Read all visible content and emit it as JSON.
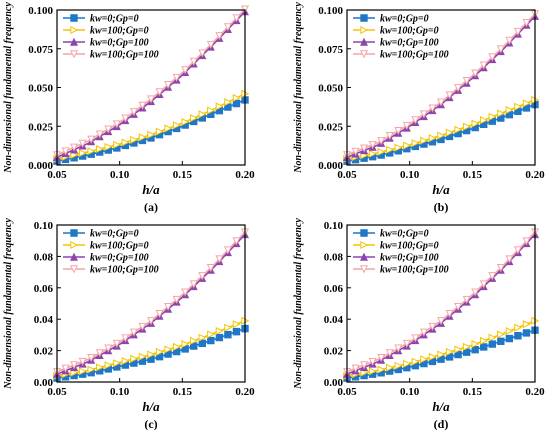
{
  "chart_data": [
    {
      "type": "line",
      "panel_label": "(a)",
      "xlabel": "h/a",
      "ylabel": "Non-dimensional fundamental frequency",
      "xlim": [
        0.05,
        0.2
      ],
      "ylim": [
        0,
        0.1
      ],
      "xticks": [
        "0.05",
        "0.10",
        "0.15",
        "0.20"
      ],
      "yticks": [
        "0.000",
        "0.025",
        "0.050",
        "0.075",
        "0.100"
      ],
      "legend_position": "top-left",
      "x": [
        0.05,
        0.075,
        0.1,
        0.125,
        0.15,
        0.175,
        0.2
      ],
      "series": [
        {
          "name": "kw=0;Gp=0",
          "color": "#1f77c8",
          "marker": "square",
          "values": [
            0.0025,
            0.0065,
            0.0115,
            0.0175,
            0.025,
            0.0335,
            0.042
          ]
        },
        {
          "name": "kw=100;Gp=0",
          "color": "#f5c400",
          "marker": "triangle-right",
          "values": [
            0.004,
            0.0085,
            0.0135,
            0.0195,
            0.027,
            0.036,
            0.046
          ]
        },
        {
          "name": "kw=0;Gp=100",
          "color": "#8e44ad",
          "marker": "triangle-up",
          "values": [
            0.005,
            0.014,
            0.026,
            0.041,
            0.058,
            0.078,
            0.099
          ]
        },
        {
          "name": "kw=100;Gp=100",
          "color": "#f4a6a6",
          "marker": "triangle-down",
          "values": [
            0.0065,
            0.0155,
            0.0275,
            0.0425,
            0.0595,
            0.0795,
            0.1005
          ]
        }
      ]
    },
    {
      "type": "line",
      "panel_label": "(b)",
      "xlabel": "h/a",
      "ylabel": "Non-dimensional fundamental frequency",
      "xlim": [
        0.05,
        0.2
      ],
      "ylim": [
        0,
        0.1
      ],
      "xticks": [
        "0.05",
        "0.10",
        "0.15",
        "0.20"
      ],
      "yticks": [
        "0.000",
        "0.025",
        "0.050",
        "0.075",
        "0.100"
      ],
      "legend_position": "top-left",
      "x": [
        0.05,
        0.075,
        0.1,
        0.125,
        0.15,
        0.175,
        0.2
      ],
      "series": [
        {
          "name": "kw=0;Gp=0",
          "color": "#1f77c8",
          "marker": "square",
          "values": [
            0.0025,
            0.006,
            0.011,
            0.0165,
            0.0235,
            0.031,
            0.039
          ]
        },
        {
          "name": "kw=100;Gp=0",
          "color": "#f5c400",
          "marker": "triangle-right",
          "values": [
            0.004,
            0.008,
            0.013,
            0.019,
            0.026,
            0.034,
            0.042
          ]
        },
        {
          "name": "kw=0;Gp=100",
          "color": "#8e44ad",
          "marker": "triangle-up",
          "values": [
            0.005,
            0.013,
            0.025,
            0.039,
            0.056,
            0.075,
            0.096
          ]
        },
        {
          "name": "kw=100;Gp=100",
          "color": "#f4a6a6",
          "marker": "triangle-down",
          "values": [
            0.0065,
            0.0145,
            0.0265,
            0.0405,
            0.0575,
            0.0765,
            0.0975
          ]
        }
      ]
    },
    {
      "type": "line",
      "panel_label": "(c)",
      "xlabel": "h/a",
      "ylabel": "Non-dimensional fundamental frequency",
      "xlim": [
        0.05,
        0.2
      ],
      "ylim": [
        0,
        0.1
      ],
      "xticks": [
        "0.05",
        "0.10",
        "0.15",
        "0.20"
      ],
      "yticks": [
        "0.00",
        "0.02",
        "0.04",
        "0.06",
        "0.08",
        "0.10"
      ],
      "legend_position": "top-left",
      "x": [
        0.05,
        0.075,
        0.1,
        0.125,
        0.15,
        0.175,
        0.2
      ],
      "series": [
        {
          "name": "kw=0;Gp=0",
          "color": "#1f77c8",
          "marker": "square",
          "values": [
            0.0025,
            0.0055,
            0.01,
            0.0145,
            0.0205,
            0.027,
            0.034
          ]
        },
        {
          "name": "kw=100;Gp=0",
          "color": "#f5c400",
          "marker": "triangle-right",
          "values": [
            0.004,
            0.0075,
            0.0125,
            0.0175,
            0.0235,
            0.031,
            0.039
          ]
        },
        {
          "name": "kw=0;Gp=100",
          "color": "#8e44ad",
          "marker": "triangle-up",
          "values": [
            0.005,
            0.013,
            0.024,
            0.0375,
            0.054,
            0.073,
            0.094
          ]
        },
        {
          "name": "kw=100;Gp=100",
          "color": "#f4a6a6",
          "marker": "triangle-down",
          "values": [
            0.0065,
            0.0145,
            0.0255,
            0.039,
            0.0555,
            0.0745,
            0.0955
          ]
        }
      ]
    },
    {
      "type": "line",
      "panel_label": "(d)",
      "xlabel": "h/a",
      "ylabel": "Non-dimensional fundamental frequency",
      "xlim": [
        0.05,
        0.2
      ],
      "ylim": [
        0,
        0.1
      ],
      "xticks": [
        "0.05",
        "0.10",
        "0.15",
        "0.20"
      ],
      "yticks": [
        "0.00",
        "0.02",
        "0.04",
        "0.06",
        "0.08",
        "0.10"
      ],
      "legend_position": "top-left",
      "x": [
        0.05,
        0.075,
        0.1,
        0.125,
        0.15,
        0.175,
        0.2
      ],
      "series": [
        {
          "name": "kw=0;Gp=0",
          "color": "#1f77c8",
          "marker": "square",
          "values": [
            0.0025,
            0.0055,
            0.0095,
            0.0145,
            0.02,
            0.0265,
            0.033
          ]
        },
        {
          "name": "kw=100;Gp=0",
          "color": "#f5c400",
          "marker": "triangle-right",
          "values": [
            0.004,
            0.0075,
            0.012,
            0.0175,
            0.0235,
            0.031,
            0.039
          ]
        },
        {
          "name": "kw=0;Gp=100",
          "color": "#8e44ad",
          "marker": "triangle-up",
          "values": [
            0.005,
            0.013,
            0.024,
            0.0375,
            0.054,
            0.073,
            0.094
          ]
        },
        {
          "name": "kw=100;Gp=100",
          "color": "#f4a6a6",
          "marker": "triangle-down",
          "values": [
            0.0065,
            0.0145,
            0.0255,
            0.039,
            0.0555,
            0.0745,
            0.0955
          ]
        }
      ]
    }
  ]
}
